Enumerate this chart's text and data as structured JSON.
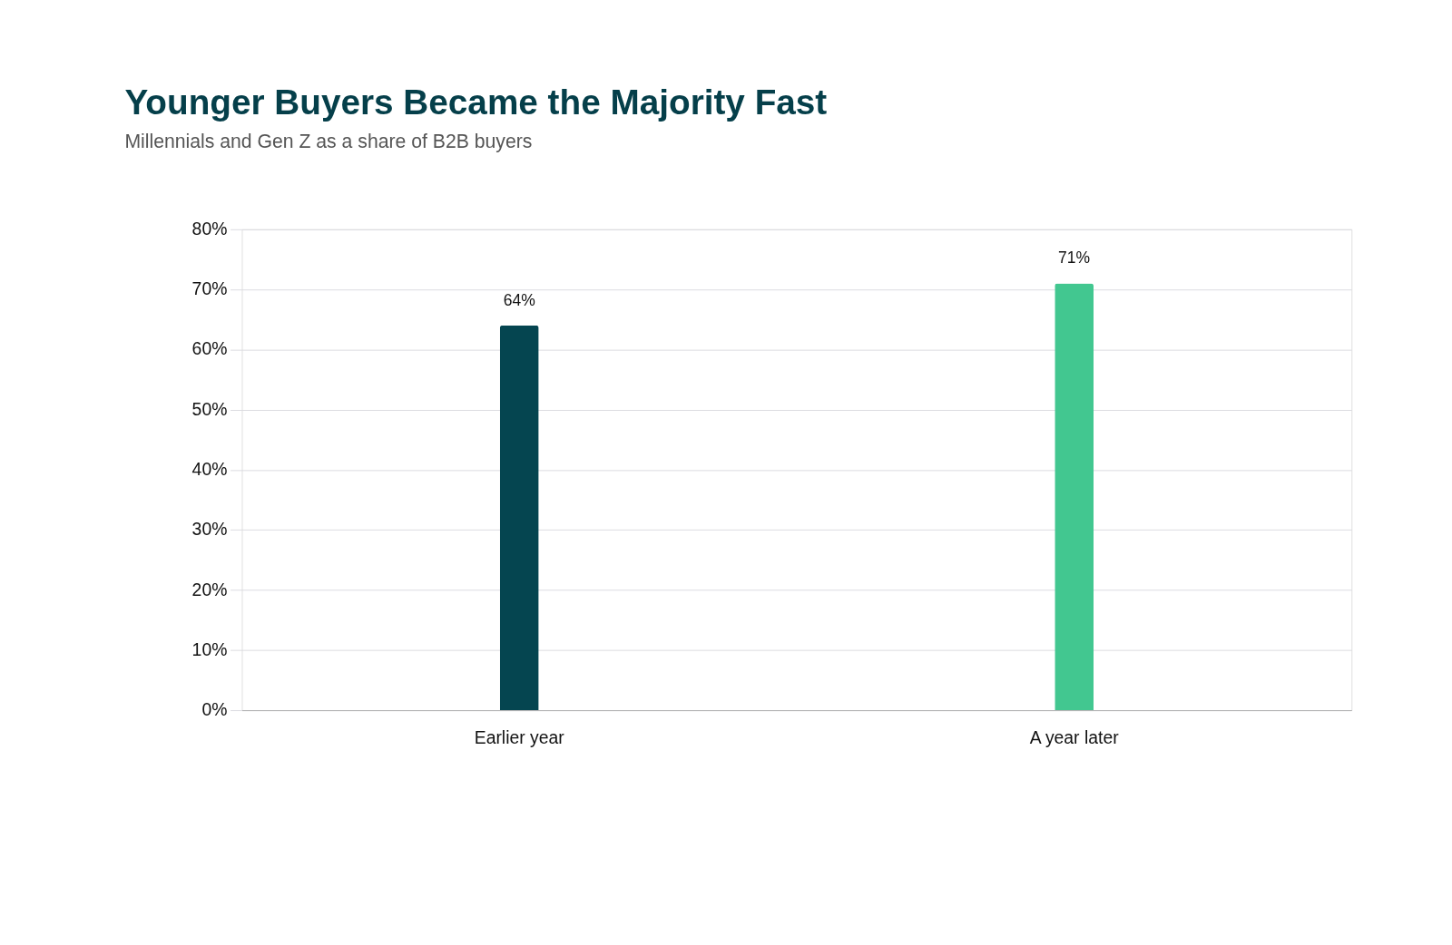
{
  "chart_data": {
    "type": "bar",
    "title": "Younger Buyers Became the Majority Fast",
    "subtitle": "Millennials and Gen Z as a share of B2B buyers",
    "categories": [
      "Earlier year",
      "A year later"
    ],
    "values": [
      64,
      71
    ],
    "colors": [
      "#054550",
      "#42c790"
    ],
    "value_labels": [
      "64%",
      "71%"
    ],
    "ylim": [
      0,
      80
    ],
    "yticks": [
      {
        "value": 0,
        "label": "0%"
      },
      {
        "value": 10,
        "label": "10%"
      },
      {
        "value": 20,
        "label": "20%"
      },
      {
        "value": 30,
        "label": "30%"
      },
      {
        "value": 40,
        "label": "40%"
      },
      {
        "value": 50,
        "label": "50%"
      },
      {
        "value": 60,
        "label": "60%"
      },
      {
        "value": 70,
        "label": "70%"
      },
      {
        "value": 80,
        "label": "80%"
      }
    ],
    "grid": "y"
  }
}
